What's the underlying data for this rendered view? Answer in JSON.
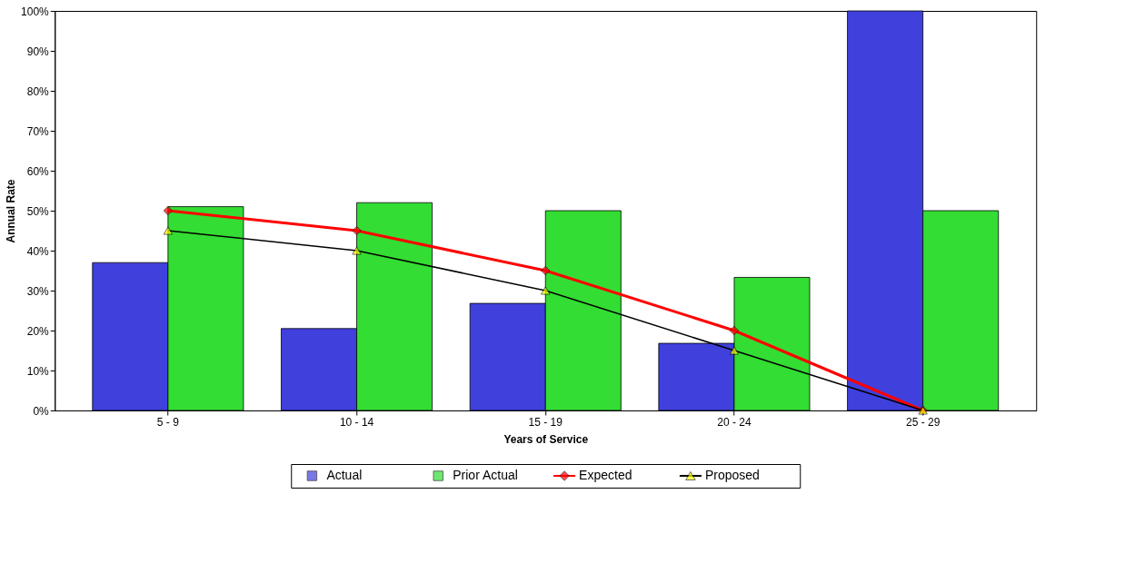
{
  "chart_data": {
    "type": "bar",
    "xlabel": "Years of Service",
    "ylabel": "Annual Rate",
    "categories": [
      "5 - 9",
      "10 - 14",
      "15 - 19",
      "20 - 24",
      "25 - 29"
    ],
    "series": [
      {
        "name": "Actual",
        "color": "#4040dd",
        "values": [
          37,
          20.5,
          26.8,
          16.8,
          100
        ]
      },
      {
        "name": "Prior Actual",
        "color": "#33dd33",
        "values": [
          51,
          52,
          50,
          33.3,
          50
        ]
      },
      {
        "name": "Expected",
        "type": "line",
        "color": "#ff0000",
        "marker": "diamond",
        "values": [
          50,
          45,
          35,
          20,
          0
        ]
      },
      {
        "name": "Proposed",
        "type": "line",
        "color": "#000000",
        "marker": "triangle",
        "values": [
          45,
          40,
          30,
          15,
          0
        ]
      }
    ],
    "ylim": [
      0,
      100
    ],
    "yticks": [
      {
        "value": 0,
        "label": "0%"
      },
      {
        "value": 10,
        "label": "10%"
      },
      {
        "value": 20,
        "label": "20%"
      },
      {
        "value": 30,
        "label": "30%"
      },
      {
        "value": 40,
        "label": "40%"
      },
      {
        "value": 50,
        "label": "50%"
      },
      {
        "value": 60,
        "label": "60%"
      },
      {
        "value": 70,
        "label": "70%"
      },
      {
        "value": 80,
        "label": "80%"
      },
      {
        "value": 90,
        "label": "90%"
      },
      {
        "value": 100,
        "label": "100%"
      }
    ],
    "grid": false,
    "legend": "bottom"
  }
}
